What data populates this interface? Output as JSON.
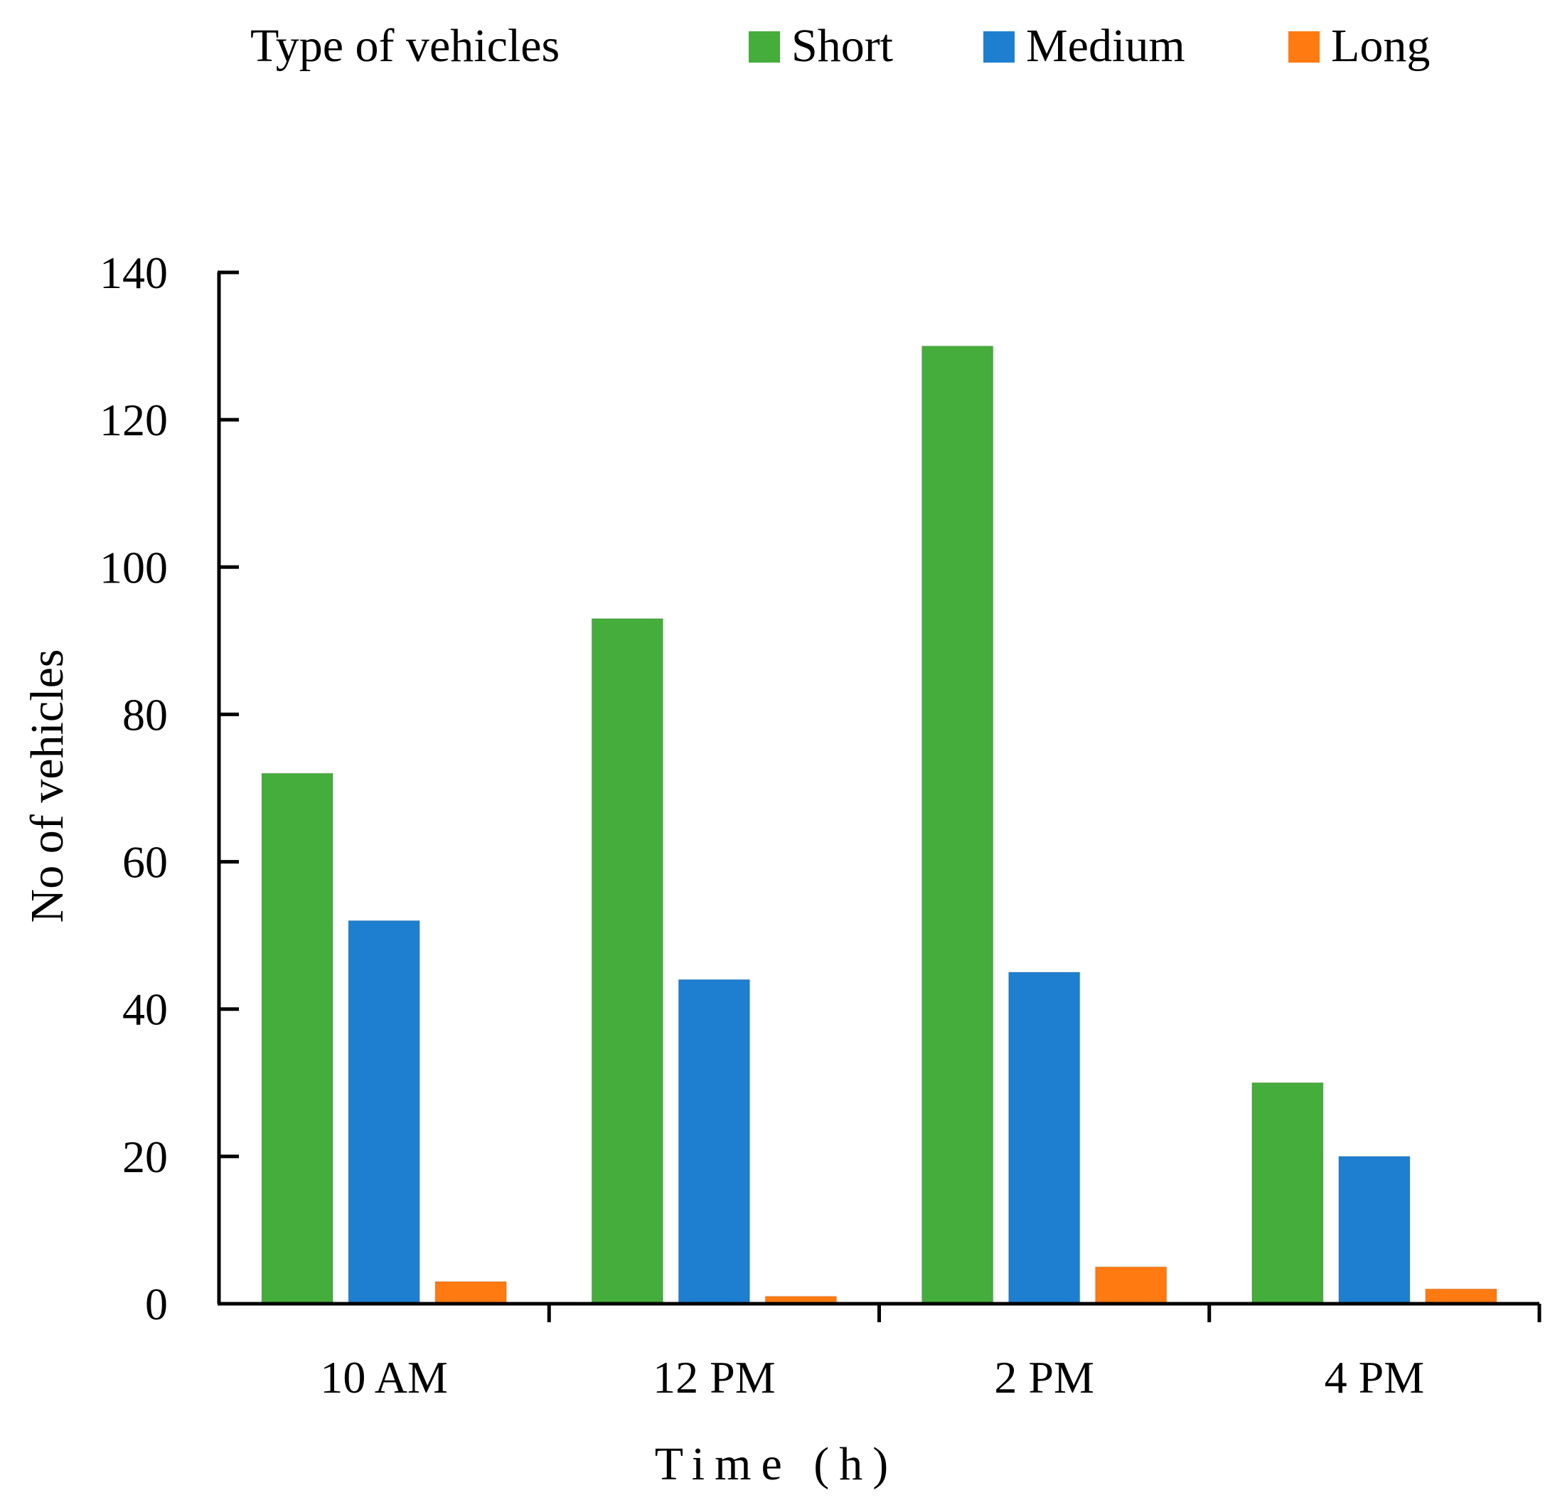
{
  "chart_data": {
    "type": "bar",
    "title": "",
    "xlabel": "Time (h)",
    "ylabel": "No of vehicles",
    "categories": [
      "10 AM",
      "12 PM",
      "2 PM",
      "4 PM"
    ],
    "series": [
      {
        "name": "Short",
        "color": "#45ad3b",
        "values": [
          72,
          93,
          130,
          30
        ]
      },
      {
        "name": "Medium",
        "color": "#1e7fd0",
        "values": [
          52,
          44,
          45,
          20
        ]
      },
      {
        "name": "Long",
        "color": "#ff7a10",
        "values": [
          3,
          1,
          5,
          2
        ]
      }
    ],
    "ylim": [
      0,
      140
    ],
    "yticks": [
      0,
      20,
      40,
      60,
      80,
      100,
      120,
      140
    ],
    "grid": false,
    "legend": {
      "title": "Type of vehicles",
      "placement": "top"
    }
  }
}
